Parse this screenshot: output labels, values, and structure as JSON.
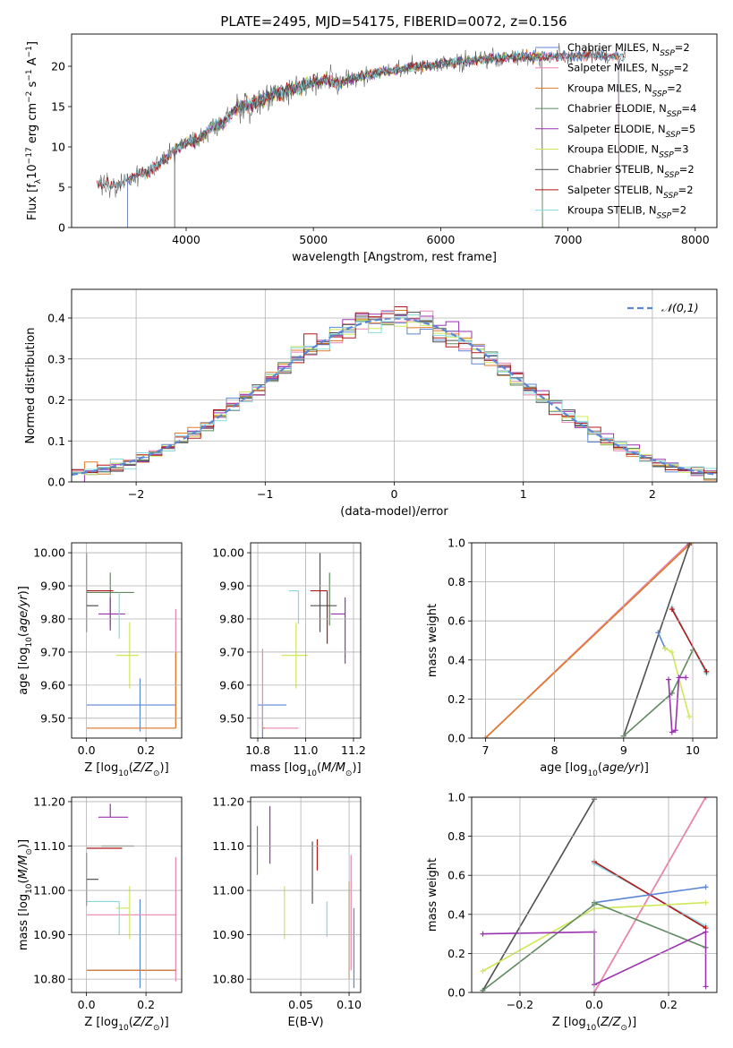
{
  "figure_title": "PLATE=2495, MJD=54175, FIBERID=0072, z=0.156",
  "colors": {
    "chabrier_miles": "#5b86d6",
    "salpeter_miles": "#e884b2",
    "kroupa_miles": "#e07a26",
    "chabrier_elodie": "#5f8a5f",
    "salpeter_elodie": "#9b33b0",
    "kroupa_elodie": "#cfe85a",
    "chabrier_stelib": "#505050",
    "salpeter_stelib": "#b01818",
    "kroupa_stelib": "#86d9e0",
    "normal": "#5b86d6"
  },
  "chart_data": [
    {
      "id": "spectrum",
      "type": "line",
      "xlabel": "wavelength [Angstrom, rest frame]",
      "ylabel": "Flux [f_λ10^-17 erg cm^-2 s^-1 A^-1]",
      "xlim": [
        3100,
        8170
      ],
      "ylim": [
        0,
        24
      ],
      "xticks": [
        4000,
        5000,
        6000,
        7000,
        8000
      ],
      "yticks": [
        0,
        5,
        10,
        15,
        20
      ],
      "data_range": [
        3300,
        7450
      ],
      "continuum": [
        [
          3300,
          5.6
        ],
        [
          3400,
          5.3
        ],
        [
          3500,
          5.5
        ],
        [
          3600,
          6.5
        ],
        [
          3700,
          7.0
        ],
        [
          3800,
          8.0
        ],
        [
          3900,
          9.5
        ],
        [
          4000,
          10.5
        ],
        [
          4100,
          11.0
        ],
        [
          4200,
          12.5
        ],
        [
          4300,
          13.0
        ],
        [
          4400,
          15.0
        ],
        [
          4500,
          15.2
        ],
        [
          4600,
          15.8
        ],
        [
          4700,
          16.5
        ],
        [
          4800,
          17.0
        ],
        [
          4900,
          17.5
        ],
        [
          5000,
          18.0
        ],
        [
          5100,
          18.2
        ],
        [
          5200,
          17.8
        ],
        [
          5300,
          18.5
        ],
        [
          5500,
          19.2
        ],
        [
          5700,
          19.7
        ],
        [
          6000,
          20.3
        ],
        [
          6300,
          20.8
        ],
        [
          6600,
          21.2
        ],
        [
          6900,
          21.2
        ],
        [
          7200,
          21.3
        ],
        [
          7450,
          21.2
        ]
      ],
      "legend_position": "upper right",
      "legend": [
        {
          "key": "chabrier_miles",
          "label": "Chabrier MILES, N",
          "sub": "SSP",
          "tail": "=2"
        },
        {
          "key": "salpeter_miles",
          "label": "Salpeter MILES, N",
          "sub": "SSP",
          "tail": "=2"
        },
        {
          "key": "kroupa_miles",
          "label": "Kroupa MILES, N",
          "sub": "SSP",
          "tail": "=2"
        },
        {
          "key": "chabrier_elodie",
          "label": "Chabrier ELODIE, N",
          "sub": "SSP",
          "tail": "=4"
        },
        {
          "key": "salpeter_elodie",
          "label": "Salpeter ELODIE, N",
          "sub": "SSP",
          "tail": "=5"
        },
        {
          "key": "kroupa_elodie",
          "label": "Kroupa ELODIE, N",
          "sub": "SSP",
          "tail": "=3"
        },
        {
          "key": "chabrier_stelib",
          "label": "Chabrier STELIB, N",
          "sub": "SSP",
          "tail": "=2"
        },
        {
          "key": "salpeter_stelib",
          "label": "Salpeter STELIB, N",
          "sub": "SSP",
          "tail": "=2"
        },
        {
          "key": "kroupa_stelib",
          "label": "Kroupa STELIB, N",
          "sub": "SSP",
          "tail": "=2"
        }
      ],
      "model_ranges": {
        "chabrier_miles": [
          3540,
          7400
        ],
        "salpeter_miles": [
          3540,
          7400
        ],
        "kroupa_miles": [
          3540,
          7400
        ],
        "chabrier_elodie": [
          3910,
          6800
        ],
        "salpeter_elodie": [
          3910,
          6800
        ],
        "kroupa_elodie": [
          3910,
          6800
        ],
        "chabrier_stelib": [
          3300,
          7450
        ],
        "salpeter_stelib": [
          3300,
          7450
        ],
        "kroupa_stelib": [
          3300,
          7450
        ]
      }
    },
    {
      "id": "residuals",
      "type": "histogram",
      "xlabel": "(data-model)/error",
      "ylabel": "Normed distribution",
      "xlim": [
        -2.5,
        2.5
      ],
      "ylim": [
        0,
        0.47
      ],
      "xticks": [
        -2,
        -1,
        0,
        1,
        2
      ],
      "yticks": [
        0.0,
        0.1,
        0.2,
        0.3,
        0.4
      ],
      "bin_width": 0.1,
      "legend": "𝒩(0,1)",
      "legend_position": "upper right"
    },
    {
      "id": "age_vs_Z",
      "type": "errorbar",
      "xlabel": "Z [log10(Z/Z⊙)]",
      "ylabel": "age  [log10(age/yr)]",
      "xlim": [
        -0.05,
        0.32
      ],
      "ylim": [
        9.44,
        10.03
      ],
      "xticks": [
        0.0,
        0.2
      ],
      "yticks": [
        9.5,
        9.6,
        9.7,
        9.8,
        9.9,
        10.0
      ],
      "points": [
        {
          "s": "chabrier_miles",
          "x": 0.18,
          "xe": [
            0.18,
            0.12
          ],
          "y": 9.54,
          "ye": [
            0.08,
            0.08
          ]
        },
        {
          "s": "salpeter_miles",
          "x": 0.3,
          "xe": [
            0.3,
            0.0
          ],
          "y": 9.47,
          "ye": [
            0.0,
            0.36
          ]
        },
        {
          "s": "kroupa_miles",
          "x": 0.3,
          "xe": [
            0.3,
            0.0
          ],
          "y": 9.47,
          "ye": [
            0.0,
            0.23
          ]
        },
        {
          "s": "chabrier_elodie",
          "x": 0.08,
          "xe": [
            0.08,
            0.08
          ],
          "y": 9.88,
          "ye": [
            0.1,
            0.06
          ]
        },
        {
          "s": "salpeter_elodie",
          "x": 0.08,
          "xe": [
            0.04,
            0.05
          ],
          "y": 9.815,
          "ye": [
            0.05,
            0.05
          ]
        },
        {
          "s": "kroupa_elodie",
          "x": 0.145,
          "xe": [
            0.045,
            0.03
          ],
          "y": 9.69,
          "ye": [
            0.1,
            0.1
          ]
        },
        {
          "s": "chabrier_stelib",
          "x": 0.0,
          "xe": [
            0.0,
            0.04
          ],
          "y": 9.84,
          "ye": [
            0.08,
            0.16
          ]
        },
        {
          "s": "salpeter_stelib",
          "x": 0.0,
          "xe": [
            0.0,
            0.09
          ],
          "y": 9.885,
          "ye": [
            0.0,
            0.0
          ]
        },
        {
          "s": "kroupa_stelib",
          "x": 0.11,
          "xe": [
            0.0,
            0.0
          ],
          "y": 9.84,
          "ye": [
            0.1,
            0.04
          ]
        }
      ]
    },
    {
      "id": "age_vs_mass",
      "type": "errorbar",
      "xlabel": "mass [log10(M/M⊙)]",
      "ylabel": "",
      "xlim": [
        10.77,
        11.23
      ],
      "ylim": [
        9.44,
        10.03
      ],
      "xticks": [
        10.8,
        11.0,
        11.2
      ],
      "yticks": [
        9.5,
        9.6,
        9.7,
        9.8,
        9.9,
        10.0
      ],
      "points": [
        {
          "s": "chabrier_miles",
          "x": 10.82,
          "xe": [
            0.02,
            0.1
          ],
          "y": 9.54,
          "ye": [
            0.26,
            0.0
          ]
        },
        {
          "s": "salpeter_miles",
          "x": 10.82,
          "xe": [
            0.0,
            0.15
          ],
          "y": 9.47,
          "ye": [
            0.0,
            0.24
          ]
        },
        {
          "s": "kroupa_miles",
          "x": 10.82,
          "xe": [
            0.0,
            0.01
          ],
          "y": 9.47,
          "ye": [
            0.0,
            0.0
          ]
        },
        {
          "s": "chabrier_elodie",
          "x": 11.1,
          "xe": [
            0.0,
            0.0
          ],
          "y": 9.88,
          "ye": [
            0.1,
            0.06
          ]
        },
        {
          "s": "salpeter_elodie",
          "x": 11.165,
          "xe": [
            0.06,
            0.0
          ],
          "y": 9.815,
          "ye": [
            0.15,
            0.05
          ]
        },
        {
          "s": "kroupa_elodie",
          "x": 10.96,
          "xe": [
            0.06,
            0.05
          ],
          "y": 9.69,
          "ye": [
            0.1,
            0.1
          ]
        },
        {
          "s": "chabrier_stelib",
          "x": 11.06,
          "xe": [
            0.04,
            0.07
          ],
          "y": 9.84,
          "ye": [
            0.08,
            0.16
          ]
        },
        {
          "s": "salpeter_stelib",
          "x": 11.09,
          "xe": [
            0.07,
            0.0
          ],
          "y": 9.885,
          "ye": [
            0.16,
            0.0
          ]
        },
        {
          "s": "kroupa_stelib",
          "x": 10.97,
          "xe": [
            0.04,
            0.0
          ],
          "y": 9.885,
          "ye": [
            0.1,
            0.0
          ]
        }
      ]
    },
    {
      "id": "mass_weight_vs_age",
      "type": "line",
      "xlabel": "age  [log10(age/yr)]",
      "ylabel": "mass weight",
      "xlim": [
        6.8,
        10.35
      ],
      "ylim": [
        0,
        1
      ],
      "xticks": [
        7,
        8,
        9,
        10
      ],
      "yticks": [
        0.0,
        0.2,
        0.4,
        0.6,
        0.8,
        1.0
      ],
      "series": [
        {
          "s": "salpeter_miles",
          "x": [
            7.0,
            9.95
          ],
          "y": [
            0.0,
            1.0
          ]
        },
        {
          "s": "kroupa_miles",
          "x": [
            7.0,
            9.98
          ],
          "y": [
            0.0,
            1.0
          ]
        },
        {
          "s": "chabrier_stelib",
          "x": [
            9.0,
            9.95
          ],
          "y": [
            0.01,
            0.99
          ]
        },
        {
          "s": "kroupa_stelib",
          "x": [
            9.7,
            10.2
          ],
          "y": [
            0.67,
            0.33
          ]
        },
        {
          "s": "salpeter_stelib",
          "x": [
            9.7,
            10.2
          ],
          "y": [
            0.66,
            0.34
          ]
        },
        {
          "s": "chabrier_elodie",
          "x": [
            9.0,
            9.7,
            10.0
          ],
          "y": [
            0.01,
            0.23,
            0.45
          ]
        },
        {
          "s": "chabrier_miles",
          "x": [
            9.5,
            9.6
          ],
          "y": [
            0.54,
            0.46
          ]
        },
        {
          "s": "kroupa_elodie",
          "x": [
            9.6,
            9.7,
            9.95
          ],
          "y": [
            0.46,
            0.44,
            0.11
          ]
        },
        {
          "s": "salpeter_elodie",
          "x": [
            9.65,
            9.7,
            9.75,
            9.8,
            9.9
          ],
          "y": [
            0.3,
            0.03,
            0.04,
            0.31,
            0.31
          ]
        }
      ]
    },
    {
      "id": "mass_vs_Z",
      "type": "errorbar",
      "xlabel": "Z [log10(Z/Z⊙)]",
      "ylabel": "mass [log10(M/M⊙)]",
      "xlim": [
        -0.05,
        0.32
      ],
      "ylim": [
        10.77,
        11.21
      ],
      "xticks": [
        0.0,
        0.2
      ],
      "yticks": [
        10.8,
        10.9,
        11.0,
        11.1,
        11.2
      ],
      "points": [
        {
          "s": "chabrier_miles",
          "x": 0.18,
          "xe": [
            0.18,
            0.12
          ],
          "y": 10.82,
          "ye": [
            0.04,
            0.16
          ]
        },
        {
          "s": "salpeter_miles",
          "x": 0.3,
          "xe": [
            0.3,
            0.0
          ],
          "y": 10.945,
          "ye": [
            0.15,
            0.13
          ]
        },
        {
          "s": "kroupa_miles",
          "x": 0.3,
          "xe": [
            0.3,
            0.0
          ],
          "y": 10.82,
          "ye": [
            0.0,
            0.0
          ]
        },
        {
          "s": "chabrier_elodie",
          "x": 0.08,
          "xe": [
            0.03,
            0.08
          ],
          "y": 11.1,
          "ye": [
            0.0,
            0.0
          ]
        },
        {
          "s": "salpeter_elodie",
          "x": 0.08,
          "xe": [
            0.04,
            0.06
          ],
          "y": 11.165,
          "ye": [
            0.0,
            0.03
          ]
        },
        {
          "s": "kroupa_elodie",
          "x": 0.145,
          "xe": [
            0.045,
            0.0
          ],
          "y": 10.96,
          "ye": [
            0.07,
            0.05
          ]
        },
        {
          "s": "chabrier_stelib",
          "x": 0.0,
          "xe": [
            0.0,
            0.04
          ],
          "y": 11.025,
          "ye": [
            0.06,
            0.06
          ]
        },
        {
          "s": "salpeter_stelib",
          "x": 0.0,
          "xe": [
            0.0,
            0.12
          ],
          "y": 11.095,
          "ye": [
            0.0,
            0.0
          ]
        },
        {
          "s": "kroupa_stelib",
          "x": 0.11,
          "xe": [
            0.11,
            0.0
          ],
          "y": 10.975,
          "ye": [
            0.075,
            0.0
          ]
        }
      ]
    },
    {
      "id": "mass_vs_ebv",
      "type": "errorbar",
      "xlabel": "E(B-V)",
      "ylabel": "",
      "xlim": [
        -0.002,
        0.112
      ],
      "ylim": [
        10.77,
        11.21
      ],
      "xticks": [
        0.05,
        0.1
      ],
      "yticks": [
        10.8,
        10.9,
        11.0,
        11.1,
        11.2
      ],
      "points": [
        {
          "s": "chabrier_miles",
          "x": 0.105,
          "xe": [
            0,
            0
          ],
          "y": 10.87,
          "ye": [
            0.09,
            0.09
          ]
        },
        {
          "s": "salpeter_miles",
          "x": 0.102,
          "xe": [
            0,
            0
          ],
          "y": 10.95,
          "ye": [
            0.13,
            0.13
          ]
        },
        {
          "s": "kroupa_miles",
          "x": 0.1,
          "xe": [
            0,
            0
          ],
          "y": 10.91,
          "ye": [
            0.11,
            0.11
          ]
        },
        {
          "s": "chabrier_elodie",
          "x": 0.005,
          "xe": [
            0,
            0
          ],
          "y": 11.09,
          "ye": [
            0.055,
            0.055
          ]
        },
        {
          "s": "salpeter_elodie",
          "x": 0.018,
          "xe": [
            0,
            0
          ],
          "y": 11.125,
          "ye": [
            0.065,
            0.065
          ]
        },
        {
          "s": "kroupa_elodie",
          "x": 0.033,
          "xe": [
            0,
            0
          ],
          "y": 10.95,
          "ye": [
            0.06,
            0.06
          ]
        },
        {
          "s": "chabrier_stelib",
          "x": 0.062,
          "xe": [
            0,
            0
          ],
          "y": 11.04,
          "ye": [
            0.07,
            0.07
          ]
        },
        {
          "s": "salpeter_stelib",
          "x": 0.067,
          "xe": [
            0,
            0
          ],
          "y": 11.08,
          "ye": [
            0.035,
            0.035
          ]
        },
        {
          "s": "kroupa_stelib",
          "x": 0.077,
          "xe": [
            0,
            0
          ],
          "y": 10.935,
          "ye": [
            0.04,
            0.04
          ]
        }
      ]
    },
    {
      "id": "mass_weight_vs_Z",
      "type": "line",
      "xlabel": "Z [log10(Z/Z⊙)]",
      "ylabel": "mass weight",
      "xlim": [
        -0.33,
        0.33
      ],
      "ylim": [
        0,
        1
      ],
      "xticks": [
        -0.2,
        0.0,
        0.2
      ],
      "yticks": [
        0.0,
        0.2,
        0.4,
        0.6,
        0.8,
        1.0
      ],
      "series": [
        {
          "s": "chabrier_stelib",
          "x": [
            -0.3,
            0.0
          ],
          "y": [
            0.01,
            0.99
          ]
        },
        {
          "s": "kroupa_miles",
          "x": [
            0.0,
            0.3
          ],
          "y": [
            0.0,
            1.0
          ]
        },
        {
          "s": "salpeter_miles",
          "x": [
            0.0,
            0.3
          ],
          "y": [
            0.0,
            1.0
          ]
        },
        {
          "s": "kroupa_stelib",
          "x": [
            0.0,
            0.3
          ],
          "y": [
            0.66,
            0.34
          ]
        },
        {
          "s": "salpeter_stelib",
          "x": [
            0.0,
            0.3
          ],
          "y": [
            0.67,
            0.33
          ]
        },
        {
          "s": "chabrier_miles",
          "x": [
            0.0,
            0.3
          ],
          "y": [
            0.46,
            0.54
          ]
        },
        {
          "s": "kroupa_elodie",
          "x": [
            -0.3,
            0.0,
            0.3
          ],
          "y": [
            0.11,
            0.43,
            0.46
          ]
        },
        {
          "s": "chabrier_elodie",
          "x": [
            -0.3,
            0.0,
            0.0,
            0.3
          ],
          "y": [
            0.01,
            0.45,
            0.46,
            0.23
          ]
        },
        {
          "s": "salpeter_elodie",
          "x": [
            -0.3,
            0.0,
            0.0,
            0.3,
            0.3
          ],
          "y": [
            0.3,
            0.31,
            0.04,
            0.31,
            0.03
          ]
        }
      ]
    }
  ]
}
